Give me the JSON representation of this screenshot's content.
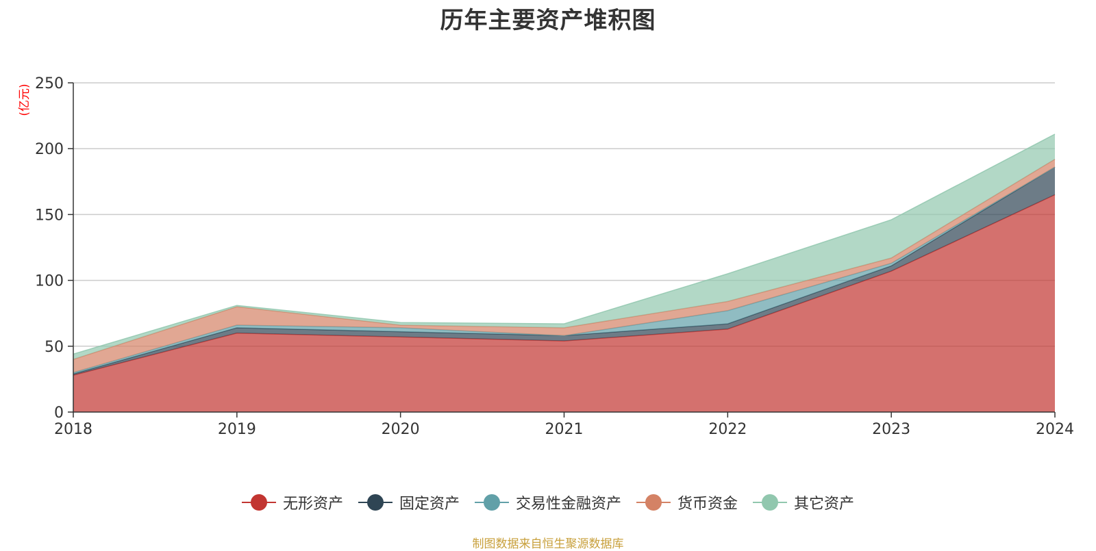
{
  "chart_data": {
    "type": "area",
    "stacked": true,
    "title": "历年主要资产堆积图",
    "unit_label": "(亿元)",
    "categories": [
      "2018",
      "2019",
      "2020",
      "2021",
      "2022",
      "2023",
      "2024"
    ],
    "y_ticks": [
      "0",
      "50",
      "100",
      "150",
      "200",
      "250"
    ],
    "ylim": [
      0,
      250
    ],
    "grid": true,
    "legend_position": "bottom",
    "series": [
      {
        "name": "无形资产",
        "color": "#c23531",
        "values": [
          28,
          60,
          57,
          54,
          63,
          107,
          165
        ]
      },
      {
        "name": "固定资产",
        "color": "#2f4554",
        "values": [
          1,
          4,
          4,
          4,
          4,
          4,
          21
        ]
      },
      {
        "name": "交易性金融资产",
        "color": "#61a0a8",
        "values": [
          1,
          2,
          3,
          0,
          10,
          2,
          0
        ]
      },
      {
        "name": "货币资金",
        "color": "#d48265",
        "values": [
          10,
          14,
          2,
          6,
          7,
          4,
          6
        ]
      },
      {
        "name": "其它资产",
        "color": "#91c7ae",
        "values": [
          4,
          1,
          2,
          3,
          21,
          29,
          19
        ]
      }
    ],
    "source_note": "制图数据来自恒生聚源数据库"
  }
}
